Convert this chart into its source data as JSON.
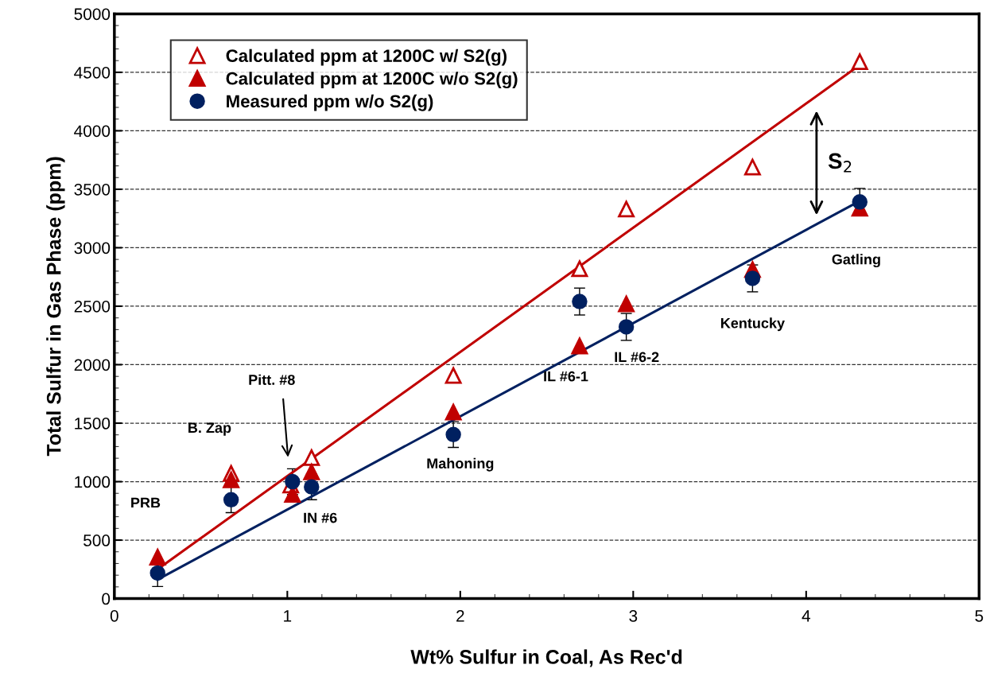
{
  "chart_data": {
    "type": "scatter",
    "xlabel": "Wt% Sulfur in Coal, As Rec'd",
    "ylabel": "Total Sulfur in Gas Phase (ppm)",
    "xlim": [
      0,
      5
    ],
    "ylim": [
      0,
      5000
    ],
    "xticks": [
      0,
      1,
      2,
      3,
      4,
      5
    ],
    "yticks": [
      0,
      500,
      1000,
      1500,
      2000,
      2500,
      3000,
      3500,
      4000,
      4500,
      5000
    ],
    "grid": "y",
    "legend": "top left",
    "series": [
      {
        "name": "Calculated ppm at 1200C w/ S2(g)",
        "type": "scatter",
        "marker": "triangle",
        "color": "#c00000",
        "x": [
          0.675,
          1.02,
          1.14,
          1.96,
          2.69,
          2.96,
          3.69,
          4.31
        ],
        "values": [
          1070,
          970,
          1205,
          1907,
          2820,
          3330,
          3690,
          4590
        ]
      },
      {
        "name": "Calculated ppm at 1200C w/o S2(g)",
        "type": "scatter",
        "marker": "triangle",
        "color": "#c00000",
        "x": [
          0.25,
          0.675,
          1.03,
          1.14,
          1.96,
          2.69,
          2.96,
          3.69,
          4.31
        ],
        "values": [
          354,
          1015,
          890,
          1083,
          1594,
          2160,
          2520,
          2813,
          3338
        ]
      },
      {
        "name": "Measured ppm w/o S2(g)",
        "type": "scatter",
        "marker": "circle",
        "color": "#002060",
        "x": [
          0.25,
          0.675,
          1.03,
          1.14,
          1.96,
          2.69,
          2.96,
          3.69,
          4.31
        ],
        "values": [
          218,
          845,
          1000,
          955,
          1403,
          2540,
          2323,
          2738,
          3392
        ],
        "errors": [
          115,
          110,
          110,
          110,
          110,
          115,
          115,
          115,
          115
        ]
      },
      {
        "type": "line",
        "color": "#c00000",
        "x": [
          0.27,
          4.28
        ],
        "values": [
          272,
          4530
        ]
      },
      {
        "type": "line",
        "color": "#002060",
        "x": [
          0.25,
          4.3
        ],
        "values": [
          163,
          3392
        ]
      }
    ],
    "annotations": [
      "PRB",
      "B. Zap",
      "Pitt. #8",
      "IN #6",
      "Mahoning",
      "IL #6-1",
      "IL #6-2",
      "Kentucky",
      "Gatling",
      "S$_{2}$"
    ]
  }
}
